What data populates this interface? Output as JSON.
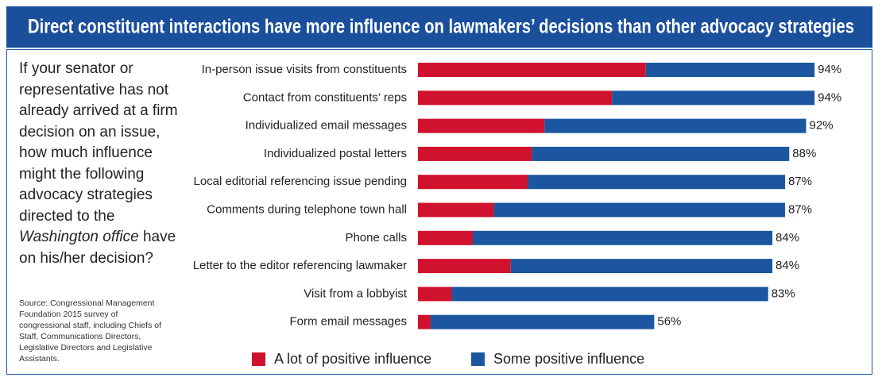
{
  "chart_data": {
    "type": "stacked-bar-horizontal",
    "title": "Direct constituent interactions have more influence on lawmakers’ decisions than other advocacy strategies",
    "question": {
      "before": "If your senator or representative has not already arrived at a firm decision on an issue, how much influence might the following advocacy strategies directed to the ",
      "italic": "Washington office",
      "after": " have on his/her decision?"
    },
    "source": "Source: Congressional Management Foundation 2015 survey of congressional staff, including Chiefs of Staff, Communications Directors, Legislative Directors and Legislative Assistants.",
    "categories": [
      "In-person issue visits from constituents",
      "Contact from constituents’ reps",
      "Individualized email messages",
      "Individualized postal letters",
      "Local editorial referencing issue pending",
      "Comments during telephone town hall",
      "Phone calls",
      "Letter to the editor referencing lawmaker",
      "Visit from a lobbyist",
      "Form email messages"
    ],
    "series": [
      {
        "name": "A lot of positive influence",
        "color": "#d0122e",
        "values": [
          54,
          46,
          30,
          27,
          26,
          18,
          13,
          22,
          8,
          3
        ]
      },
      {
        "name": "Some positive influence",
        "color": "#1c56a0",
        "values": [
          40,
          48,
          62,
          61,
          61,
          69,
          71,
          62,
          75,
          53
        ]
      }
    ],
    "totals": {
      "values": [
        94,
        94,
        92,
        88,
        87,
        87,
        84,
        84,
        83,
        56
      ],
      "value_labels": [
        "94%",
        "94%",
        "92%",
        "88%",
        "87%",
        "87%",
        "84%",
        "84%",
        "83%",
        "56%"
      ]
    }
  }
}
